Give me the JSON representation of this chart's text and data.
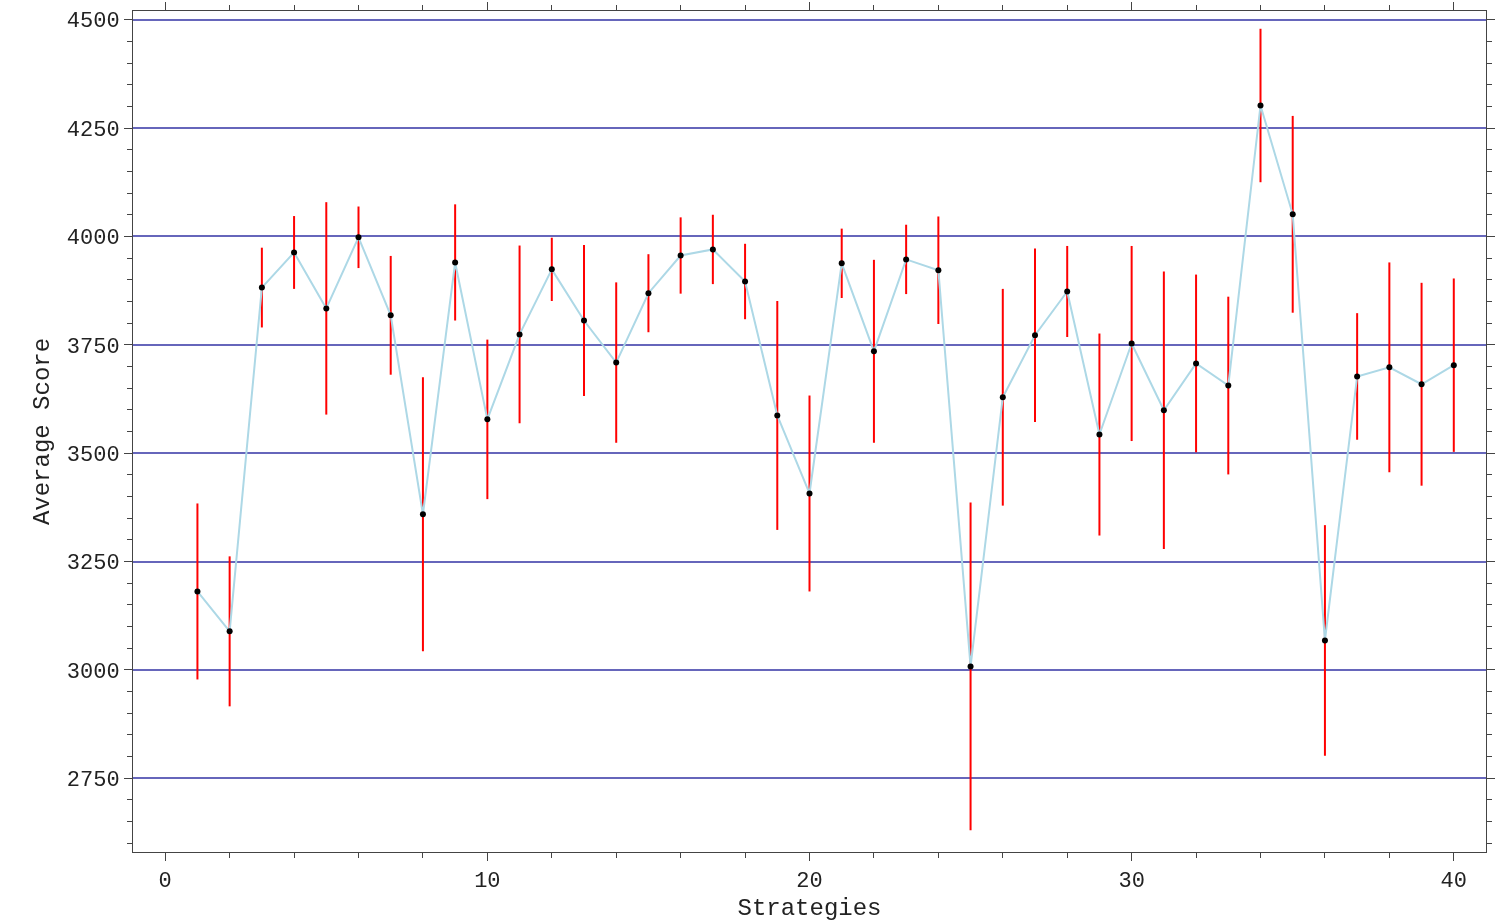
{
  "chart_data": {
    "type": "line",
    "xlabel": "Strategies",
    "ylabel": "Average Score",
    "x": [
      1,
      2,
      3,
      4,
      5,
      6,
      7,
      8,
      9,
      10,
      11,
      12,
      13,
      14,
      15,
      16,
      17,
      18,
      19,
      20,
      21,
      22,
      23,
      24,
      25,
      26,
      27,
      28,
      29,
      30,
      31,
      32,
      33,
      34,
      35,
      36,
      37,
      38,
      39,
      40
    ],
    "series": [
      {
        "color": "#add8e6",
        "colors": [
          "#000000",
          "#000000",
          "#000000",
          "#000000",
          "#000000",
          "#000000",
          "#000000",
          "#000000",
          "#000000",
          "#000000",
          "#000000",
          "#000000",
          "#000000",
          "#000000",
          "#000000",
          "#000000",
          "#000000",
          "#000000",
          "#000000",
          "#000000",
          "#000000",
          "#000000",
          "#000000",
          "#000000",
          "#000000",
          "#000000",
          "#000000",
          "#000000",
          "#000000",
          "#000000",
          "#000000",
          "#000000",
          "#000000",
          "#000000",
          "#000000",
          "#000000",
          "#000000",
          "#000000",
          "#000000",
          "#000000"
        ],
        "values": [
          3181,
          3089,
          3882,
          3963,
          3834,
          3998,
          3818,
          3359,
          3940,
          3578,
          3774,
          3924,
          3806,
          3709,
          3869,
          3956,
          3970,
          3896,
          3587,
          3407,
          3938,
          3735,
          3947,
          3922,
          3008,
          3629,
          3772,
          3873,
          3543,
          3753,
          3599,
          3707,
          3656,
          4302,
          4051,
          3068,
          3677,
          3698,
          3659,
          3703
        ],
        "errors": [
          203,
          173,
          92,
          84,
          245,
          71,
          137,
          316,
          134,
          184,
          205,
          73,
          174,
          185,
          90,
          88,
          80,
          87,
          264,
          226,
          80,
          211,
          80,
          124,
          378,
          250,
          200,
          105,
          233,
          225,
          320,
          205,
          205,
          177,
          227,
          266,
          146,
          242,
          234,
          200
        ]
      }
    ],
    "xlim": [
      -1,
      41
    ],
    "xticks": [
      0,
      10,
      20,
      30,
      40
    ],
    "ylim": [
      2580,
      4520
    ],
    "yticks": [
      2750,
      3000,
      3250,
      3500,
      3750,
      4000,
      4250,
      4500
    ],
    "grid": "y",
    "marker": "circle",
    "line_style": "solid"
  }
}
